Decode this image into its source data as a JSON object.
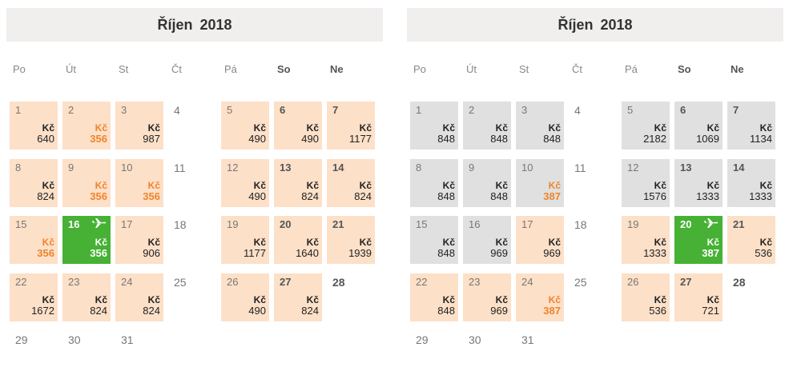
{
  "calendars": [
    {
      "title": "Říjen  2018",
      "weekdays": [
        {
          "label": "Po",
          "bold": false
        },
        {
          "label": "Út",
          "bold": false
        },
        {
          "label": "St",
          "bold": false
        },
        {
          "label": "Čt",
          "bold": false
        },
        {
          "label": "Pá",
          "bold": false
        },
        {
          "label": "So",
          "bold": true
        },
        {
          "label": "Ne",
          "bold": true
        }
      ],
      "currency": "Kč",
      "weeks": [
        [
          {
            "day": "1",
            "price": "640",
            "style": "peach"
          },
          {
            "day": "2",
            "price": "356",
            "style": "peach",
            "low": true
          },
          {
            "day": "3",
            "price": "987",
            "style": "peach"
          },
          {
            "day": "4",
            "price": "",
            "style": "plain"
          },
          {
            "day": "5",
            "price": "490",
            "style": "peach"
          },
          {
            "day": "6",
            "price": "490",
            "style": "peach"
          },
          {
            "day": "7",
            "price": "1177",
            "style": "peach"
          }
        ],
        [
          {
            "day": "8",
            "price": "824",
            "style": "peach"
          },
          {
            "day": "9",
            "price": "356",
            "style": "peach",
            "low": true
          },
          {
            "day": "10",
            "price": "356",
            "style": "peach",
            "low": true
          },
          {
            "day": "11",
            "price": "",
            "style": "plain"
          },
          {
            "day": "12",
            "price": "490",
            "style": "peach"
          },
          {
            "day": "13",
            "price": "824",
            "style": "peach"
          },
          {
            "day": "14",
            "price": "824",
            "style": "peach"
          }
        ],
        [
          {
            "day": "15",
            "price": "356",
            "style": "peach",
            "low": true
          },
          {
            "day": "16",
            "price": "356",
            "style": "green",
            "plane": true
          },
          {
            "day": "17",
            "price": "906",
            "style": "peach"
          },
          {
            "day": "18",
            "price": "",
            "style": "plain"
          },
          {
            "day": "19",
            "price": "1177",
            "style": "peach"
          },
          {
            "day": "20",
            "price": "1640",
            "style": "peach"
          },
          {
            "day": "21",
            "price": "1939",
            "style": "peach"
          }
        ],
        [
          {
            "day": "22",
            "price": "1672",
            "style": "peach"
          },
          {
            "day": "23",
            "price": "824",
            "style": "peach"
          },
          {
            "day": "24",
            "price": "824",
            "style": "peach"
          },
          {
            "day": "25",
            "price": "",
            "style": "plain"
          },
          {
            "day": "26",
            "price": "490",
            "style": "peach"
          },
          {
            "day": "27",
            "price": "824",
            "style": "peach"
          },
          {
            "day": "28",
            "price": "",
            "style": "plain"
          }
        ],
        [
          {
            "day": "29",
            "price": "",
            "style": "plain"
          },
          {
            "day": "30",
            "price": "",
            "style": "plain"
          },
          {
            "day": "31",
            "price": "",
            "style": "plain"
          }
        ]
      ]
    },
    {
      "title": "Říjen  2018",
      "weekdays": [
        {
          "label": "Po",
          "bold": false
        },
        {
          "label": "Út",
          "bold": false
        },
        {
          "label": "St",
          "bold": false
        },
        {
          "label": "Čt",
          "bold": false
        },
        {
          "label": "Pá",
          "bold": false
        },
        {
          "label": "So",
          "bold": true
        },
        {
          "label": "Ne",
          "bold": true
        }
      ],
      "currency": "Kč",
      "weeks": [
        [
          {
            "day": "1",
            "price": "848",
            "style": "grey"
          },
          {
            "day": "2",
            "price": "848",
            "style": "grey"
          },
          {
            "day": "3",
            "price": "848",
            "style": "grey"
          },
          {
            "day": "4",
            "price": "",
            "style": "plain"
          },
          {
            "day": "5",
            "price": "2182",
            "style": "grey"
          },
          {
            "day": "6",
            "price": "1069",
            "style": "grey"
          },
          {
            "day": "7",
            "price": "1134",
            "style": "grey"
          }
        ],
        [
          {
            "day": "8",
            "price": "848",
            "style": "grey"
          },
          {
            "day": "9",
            "price": "848",
            "style": "grey"
          },
          {
            "day": "10",
            "price": "387",
            "style": "grey",
            "low": true
          },
          {
            "day": "11",
            "price": "",
            "style": "plain"
          },
          {
            "day": "12",
            "price": "1576",
            "style": "grey"
          },
          {
            "day": "13",
            "price": "1333",
            "style": "grey"
          },
          {
            "day": "14",
            "price": "1333",
            "style": "grey"
          }
        ],
        [
          {
            "day": "15",
            "price": "848",
            "style": "grey"
          },
          {
            "day": "16",
            "price": "969",
            "style": "grey"
          },
          {
            "day": "17",
            "price": "969",
            "style": "peach"
          },
          {
            "day": "18",
            "price": "",
            "style": "plain"
          },
          {
            "day": "19",
            "price": "1333",
            "style": "peach"
          },
          {
            "day": "20",
            "price": "387",
            "style": "green",
            "plane": true
          },
          {
            "day": "21",
            "price": "536",
            "style": "peach"
          }
        ],
        [
          {
            "day": "22",
            "price": "848",
            "style": "peach"
          },
          {
            "day": "23",
            "price": "969",
            "style": "peach"
          },
          {
            "day": "24",
            "price": "387",
            "style": "peach",
            "low": true
          },
          {
            "day": "25",
            "price": "",
            "style": "plain"
          },
          {
            "day": "26",
            "price": "536",
            "style": "peach"
          },
          {
            "day": "27",
            "price": "721",
            "style": "peach"
          },
          {
            "day": "28",
            "price": "",
            "style": "plain"
          }
        ],
        [
          {
            "day": "29",
            "price": "",
            "style": "plain"
          },
          {
            "day": "30",
            "price": "",
            "style": "plain"
          },
          {
            "day": "31",
            "price": "",
            "style": "plain"
          }
        ]
      ]
    }
  ],
  "colors": {
    "peach": "#fde0c8",
    "grey": "#e0e0e0",
    "selected": "#46b134",
    "lowPrice": "#f0842c",
    "header": "#f0efee"
  }
}
